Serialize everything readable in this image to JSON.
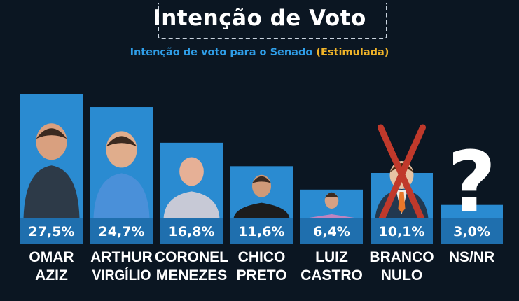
{
  "header": {
    "title": "Intenção de Voto",
    "subtitle_main": "Intenção de voto para o Senado",
    "subtitle_paren": "(Estimulada)"
  },
  "colors": {
    "background": "#0b1622",
    "bar": "#2a8bd1",
    "label_box": "#1f6fae",
    "subtitle": "#2f9ee8",
    "subtitle_accent": "#f0b429",
    "cross": "#c0392b"
  },
  "chart_data": {
    "type": "bar",
    "title": "Intenção de Voto",
    "subtitle": "Intenção de voto para o Senado (Estimulada)",
    "xlabel": "",
    "ylabel": "",
    "grid": false,
    "legend": "none",
    "categories": [
      [
        "OMAR",
        "AZIZ"
      ],
      [
        "ARTHUR",
        "VIRGÍLIO"
      ],
      [
        "CORONEL",
        "MENEZES"
      ],
      [
        "CHICO",
        "PRETO"
      ],
      [
        "LUIZ",
        "CASTRO"
      ],
      [
        "BRANCO",
        "NULO"
      ],
      [
        "NS/NR"
      ]
    ],
    "values": [
      27.5,
      24.7,
      16.8,
      11.6,
      6.4,
      10.1,
      3.0
    ],
    "labels": [
      "27,5%",
      "24,7%",
      "16,8%",
      "11,6%",
      "6,4%",
      "10,1%",
      "3,0%"
    ],
    "icons": [
      "person-photo",
      "person-photo",
      "person-photo",
      "person-photo",
      "person-photo",
      "crossed-out-person-icon",
      "question-mark-icon"
    ]
  }
}
